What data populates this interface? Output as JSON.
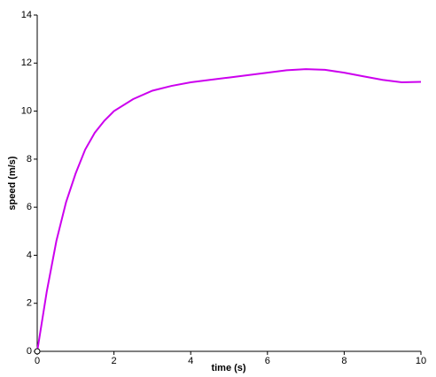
{
  "chart_data": {
    "type": "line",
    "x_label": "time (s)",
    "y_label": "speed (m/s)",
    "x": [
      0,
      0.25,
      0.5,
      0.75,
      1,
      1.25,
      1.5,
      1.75,
      2,
      2.5,
      3,
      3.5,
      4,
      4.5,
      5,
      5.5,
      6,
      6.5,
      7,
      7.5,
      8,
      8.5,
      9,
      9.5,
      10
    ],
    "series": [
      {
        "color": "#cc00ee",
        "values": [
          0,
          2.5,
          4.6,
          6.2,
          7.4,
          8.4,
          9.1,
          9.6,
          10.0,
          10.5,
          10.85,
          11.05,
          11.2,
          11.3,
          11.4,
          11.5,
          11.6,
          11.7,
          11.75,
          11.72,
          11.6,
          11.45,
          11.3,
          11.2,
          11.22
        ]
      }
    ],
    "xlim": [
      0,
      10
    ],
    "xticks": [
      0,
      2,
      4,
      6,
      8,
      10
    ],
    "ylim": [
      0,
      14
    ],
    "yticks": [
      0,
      2,
      4,
      6,
      8,
      10,
      12,
      14
    ],
    "grid": false
  }
}
